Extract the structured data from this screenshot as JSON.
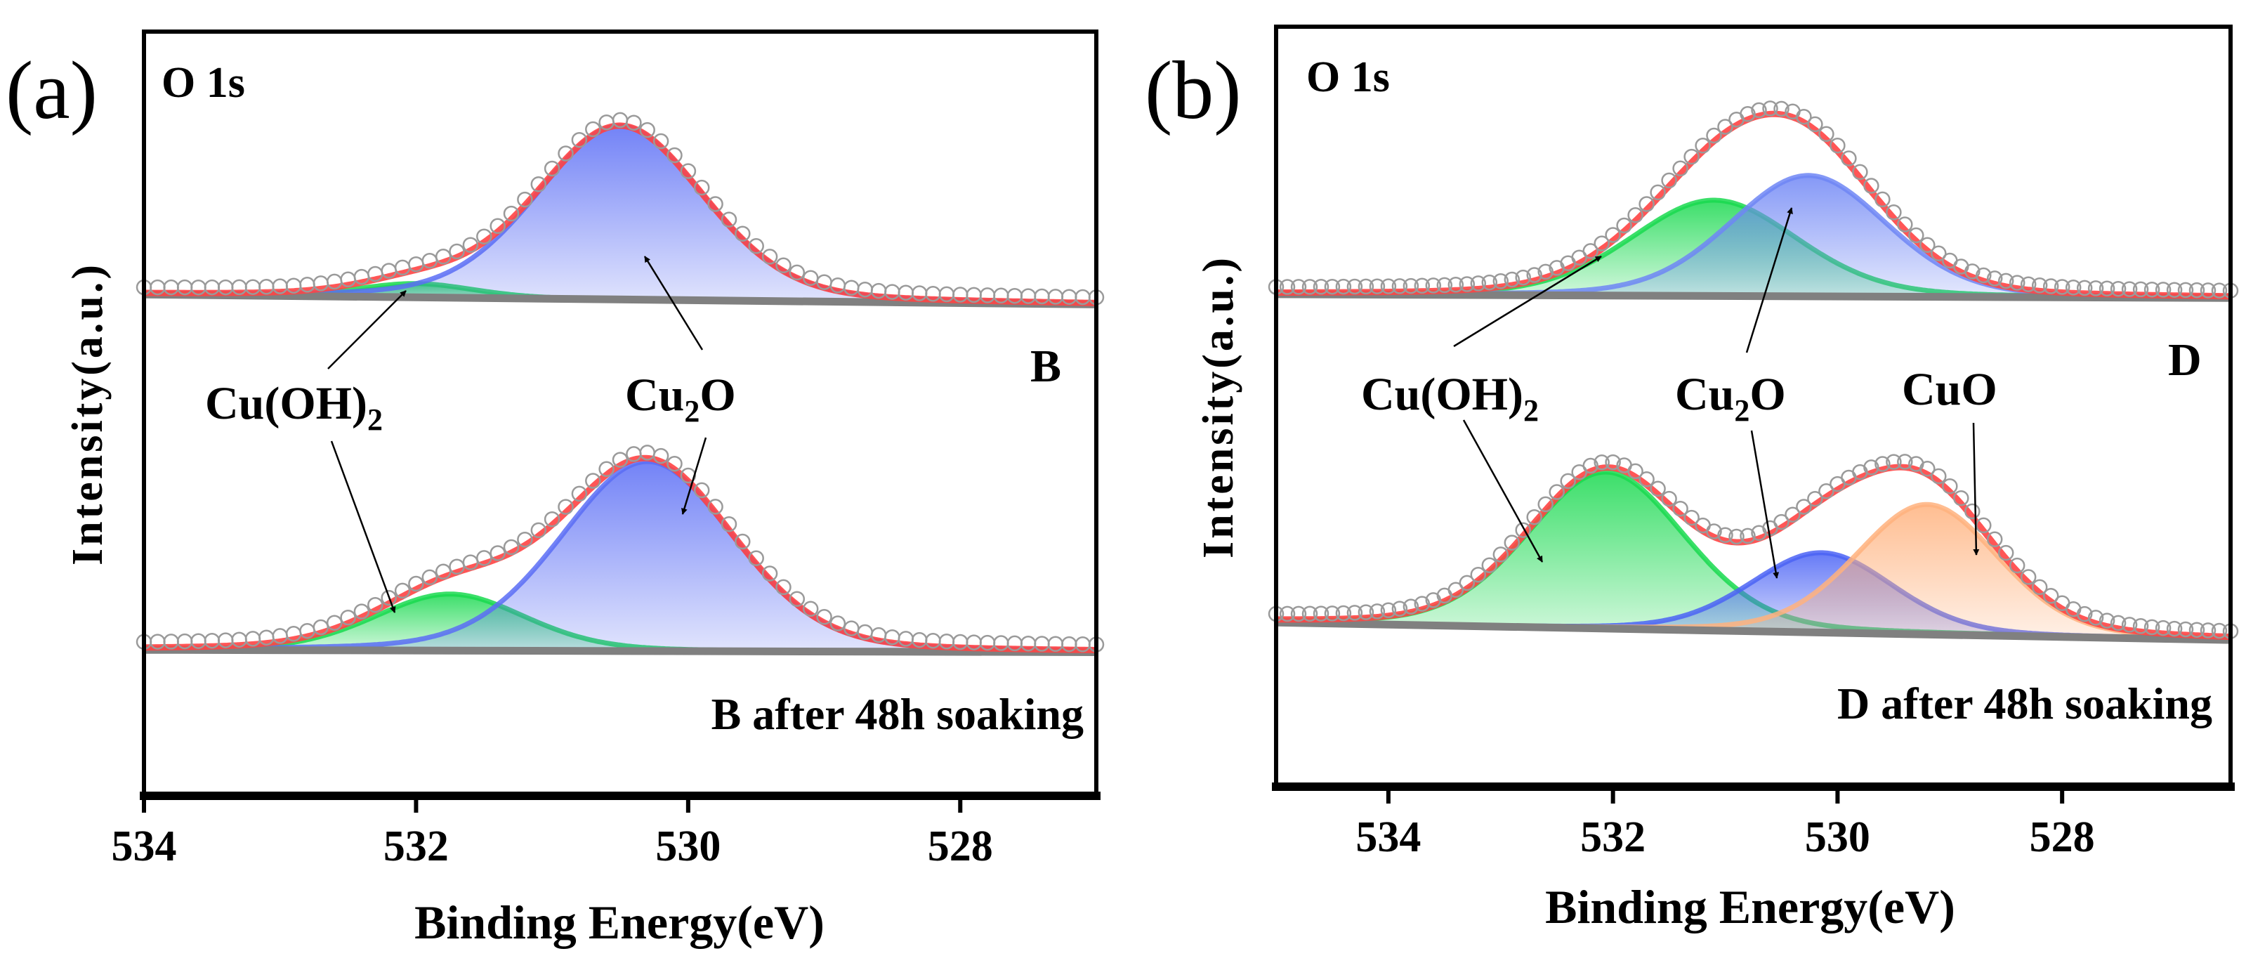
{
  "chart_data": [
    {
      "type": "line",
      "panel_label": "(a)",
      "core_level": "O 1s",
      "xlabel": "Binding Energy(eV)",
      "ylabel": "Intensity(a.u.)",
      "xlim": [
        534.0,
        527.0
      ],
      "ylim": [
        0,
        100
      ],
      "xticks": [
        534,
        532,
        530,
        528
      ],
      "xtick_labels": [
        "534",
        "532",
        "530",
        "528"
      ],
      "annotations": [
        {
          "main": "Cu(OH)",
          "sub": "2",
          "tail": ""
        },
        {
          "main": "Cu",
          "sub": "2",
          "tail": "O"
        }
      ],
      "spectra": [
        {
          "label": "B",
          "baseline": [
            65.6,
            64.3
          ],
          "components": [
            {
              "name": "Cu(OH)2",
              "center": 532.0,
              "height": 1.8,
              "fwhm": 1.0,
              "color": "#19d94f"
            },
            {
              "name": "Cu2O",
              "center": 530.5,
              "height": 22.7,
              "fwhm": 1.45,
              "color": "#5a6df5"
            }
          ]
        },
        {
          "label": "B after 48h soaking",
          "baseline": [
            19.1,
            18.8
          ],
          "components": [
            {
              "name": "Cu(OH)2",
              "center": 531.75,
              "height": 7.4,
              "fwhm": 1.3,
              "color": "#19d94f"
            },
            {
              "name": "Cu2O",
              "center": 530.3,
              "height": 24.8,
              "fwhm": 1.5,
              "color": "#5a6df5"
            }
          ]
        }
      ],
      "colors": {
        "envelope": "#ff4444",
        "background": "#808080",
        "raw": "#9a9a9a"
      }
    },
    {
      "type": "line",
      "panel_label": "(b)",
      "core_level": "O 1s",
      "xlabel": "Binding Energy(eV)",
      "ylabel": "Intensity(a.u.)",
      "xlim": [
        535.0,
        526.5
      ],
      "ylim": [
        0,
        100
      ],
      "xticks": [
        534,
        532,
        530,
        528
      ],
      "xtick_labels": [
        "534",
        "532",
        "530",
        "528"
      ],
      "annotations": [
        {
          "main": "Cu(OH)",
          "sub": "2",
          "tail": ""
        },
        {
          "main": "Cu",
          "sub": "2",
          "tail": "O"
        },
        {
          "main": "CuO",
          "sub": "",
          "tail": ""
        }
      ],
      "spectra": [
        {
          "label": "D",
          "baseline": [
            64.8,
            64.3
          ],
          "components": [
            {
              "name": "Cu(OH)2",
              "center": 531.1,
              "height": 12.6,
              "fwhm": 1.75,
              "color": "#19d94f"
            },
            {
              "name": "Cu2O",
              "center": 530.26,
              "height": 15.9,
              "fwhm": 1.65,
              "color": "#6f86f5"
            }
          ]
        },
        {
          "label": "D after 48h soaking",
          "baseline": [
            21.6,
            19.3
          ],
          "components": [
            {
              "name": "Cu(OH)2",
              "center": 532.06,
              "height": 20.6,
              "fwhm": 1.65,
              "color": "#19d94f"
            },
            {
              "name": "Cu2O",
              "center": 530.14,
              "height": 10.5,
              "fwhm": 1.5,
              "color": "#4b63f5"
            },
            {
              "name": "CuO",
              "center": 529.2,
              "height": 17.1,
              "fwhm": 1.5,
              "color": "#ffb27e"
            }
          ]
        }
      ],
      "colors": {
        "envelope": "#ff4444",
        "background": "#808080",
        "raw": "#9a9a9a"
      }
    }
  ]
}
